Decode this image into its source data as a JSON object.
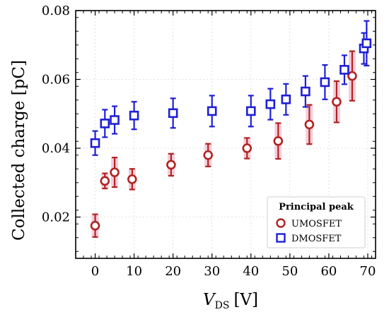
{
  "chart_data": {
    "type": "scatter",
    "xlabel_main": "V",
    "xlabel_sub": "DS",
    "xlabel_unit": "[V]",
    "ylabel": "Collected charge [pC]",
    "xlim": [
      -5,
      72
    ],
    "ylim": [
      0.008,
      0.08
    ],
    "xticks": [
      0,
      10,
      20,
      30,
      40,
      50,
      60,
      70
    ],
    "yticks": [
      0.02,
      0.04,
      0.06,
      0.08
    ],
    "ytick_labels": [
      "0.02",
      "0.04",
      "0.06",
      "0.08"
    ],
    "grid": true,
    "legend_title": "Principal peak",
    "legend_position": "bottom-right",
    "series": [
      {
        "name": "UMOSFET",
        "marker": "circle",
        "color": "#b22222",
        "band_color": "#f2c6d4",
        "points": [
          {
            "x": 0,
            "y": 0.0175,
            "err": 0.0033
          },
          {
            "x": 2.5,
            "y": 0.0305,
            "err": 0.0022
          },
          {
            "x": 5,
            "y": 0.033,
            "err": 0.0043
          },
          {
            "x": 9.5,
            "y": 0.031,
            "err": 0.003
          },
          {
            "x": 19.5,
            "y": 0.0352,
            "err": 0.0032
          },
          {
            "x": 29,
            "y": 0.038,
            "err": 0.0033
          },
          {
            "x": 39,
            "y": 0.04,
            "err": 0.003
          },
          {
            "x": 47,
            "y": 0.0421,
            "err": 0.0052
          },
          {
            "x": 55,
            "y": 0.0469,
            "err": 0.0057
          },
          {
            "x": 62,
            "y": 0.0535,
            "err": 0.006
          },
          {
            "x": 66,
            "y": 0.061,
            "err": 0.0072
          }
        ]
      },
      {
        "name": "DMOSFET",
        "marker": "square",
        "color": "#1f1fd6",
        "points": [
          {
            "x": 0,
            "y": 0.0415,
            "err": 0.0035
          },
          {
            "x": 2.5,
            "y": 0.0472,
            "err": 0.004
          },
          {
            "x": 5,
            "y": 0.0482,
            "err": 0.004
          },
          {
            "x": 10,
            "y": 0.0495,
            "err": 0.004
          },
          {
            "x": 20,
            "y": 0.0502,
            "err": 0.0043
          },
          {
            "x": 30,
            "y": 0.0508,
            "err": 0.0045
          },
          {
            "x": 40,
            "y": 0.0508,
            "err": 0.0045
          },
          {
            "x": 45,
            "y": 0.0528,
            "err": 0.0045
          },
          {
            "x": 49,
            "y": 0.0542,
            "err": 0.0045
          },
          {
            "x": 54,
            "y": 0.0565,
            "err": 0.0045
          },
          {
            "x": 59,
            "y": 0.0592,
            "err": 0.005
          },
          {
            "x": 64,
            "y": 0.0628,
            "err": 0.0042
          },
          {
            "x": 69,
            "y": 0.069,
            "err": 0.0045
          },
          {
            "x": 69.7,
            "y": 0.0705,
            "err": 0.0065
          }
        ]
      }
    ]
  }
}
